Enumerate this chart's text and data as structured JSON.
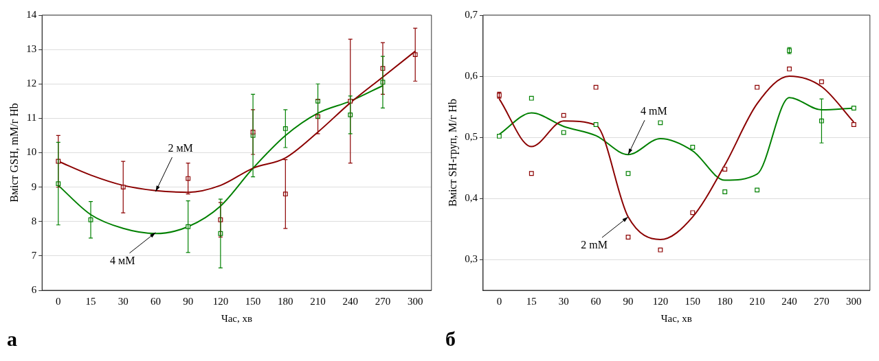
{
  "chart_data": [
    {
      "type": "scatter",
      "xlabel": "Час, хв",
      "ylabel": "Вміст GSH, mM/г Hb",
      "categories": [
        "0",
        "15",
        "30",
        "60",
        "90",
        "120",
        "150",
        "180",
        "210",
        "240",
        "270",
        "300"
      ],
      "ylim": [
        6,
        14
      ],
      "yticks": [
        6,
        7,
        8,
        9,
        10,
        11,
        12,
        13,
        14
      ],
      "grid": "y",
      "legend": false,
      "marker": "square",
      "series": [
        {
          "color": "#8b0000",
          "values": [
            9.75,
            null,
            9.0,
            null,
            9.25,
            8.05,
            10.6,
            8.8,
            11.05,
            11.5,
            12.45,
            12.85
          ],
          "errors": [
            0.75,
            null,
            0.75,
            null,
            0.45,
            0.5,
            0.65,
            1.0,
            0.5,
            1.8,
            0.75,
            0.77
          ]
        },
        {
          "color": "#008000",
          "values": [
            9.1,
            8.05,
            null,
            null,
            7.85,
            7.65,
            10.5,
            10.7,
            11.5,
            11.1,
            12.05,
            null
          ],
          "errors": [
            1.2,
            0.53,
            null,
            null,
            0.75,
            1.0,
            1.2,
            0.55,
            0.5,
            0.55,
            0.75,
            null
          ]
        },
        {
          "type": "line",
          "color": "#8b0000",
          "marker": "none",
          "values": [
            9.75,
            9.35,
            9.05,
            8.9,
            8.85,
            9.05,
            9.55,
            9.85,
            10.6,
            11.45,
            12.2,
            12.95
          ]
        },
        {
          "type": "line",
          "color": "#008000",
          "marker": "none",
          "values": [
            9.05,
            8.2,
            7.8,
            7.65,
            7.85,
            8.45,
            9.55,
            10.5,
            11.15,
            11.5,
            11.95,
            null
          ]
        }
      ],
      "annotations": [
        {
          "text": "2 мМ",
          "x": "60",
          "y": 8.87
        },
        {
          "text": "4 мМ",
          "x": "60",
          "y": 7.68
        },
        "а"
      ]
    },
    {
      "type": "scatter",
      "xlabel": "Час, хв",
      "ylabel": "Вміст SH-груп, М/г Hb",
      "categories": [
        "0",
        "15",
        "30",
        "60",
        "90",
        "120",
        "150",
        "180",
        "210",
        "240",
        "270",
        "300"
      ],
      "ylim": [
        0.25,
        0.7
      ],
      "yticks": [
        {
          "value": 0.3,
          "label": "0,3"
        },
        {
          "value": 0.4,
          "label": "0,4"
        },
        {
          "value": 0.5,
          "label": "0,5"
        },
        {
          "value": 0.6,
          "label": "0,6"
        },
        {
          "value": 0.7,
          "label": "0,7"
        }
      ],
      "grid": "y",
      "legend": false,
      "marker": "square",
      "series": [
        {
          "color": "#8b0000",
          "values": [
            0.569,
            0.441,
            0.536,
            0.582,
            0.337,
            0.316,
            0.377,
            0.448,
            0.582,
            0.612,
            0.591,
            0.521
          ],
          "errors": [
            0.005,
            null,
            null,
            null,
            null,
            null,
            null,
            null,
            null,
            null,
            null,
            null
          ]
        },
        {
          "color": "#008000",
          "values": [
            0.502,
            0.564,
            0.508,
            0.521,
            0.441,
            0.524,
            0.484,
            0.411,
            0.414,
            0.642,
            0.527,
            0.548
          ],
          "errors": [
            null,
            null,
            null,
            null,
            null,
            null,
            null,
            null,
            null,
            0.005,
            0.036,
            null
          ]
        },
        {
          "type": "line",
          "color": "#8b0000",
          "marker": "none",
          "values": [
            0.563,
            0.485,
            0.527,
            0.52,
            0.37,
            0.333,
            0.37,
            0.455,
            0.555,
            0.6,
            0.583,
            0.525
          ]
        },
        {
          "type": "line",
          "color": "#008000",
          "marker": "none",
          "values": [
            0.505,
            0.54,
            0.518,
            0.503,
            0.472,
            0.498,
            0.478,
            0.43,
            0.44,
            0.565,
            0.545,
            0.548
          ]
        }
      ],
      "annotations": [
        {
          "text": "4 mM",
          "x": "90",
          "y": 0.472
        },
        {
          "text": "2 mM",
          "x": "90",
          "y": 0.37
        },
        "б"
      ]
    }
  ]
}
